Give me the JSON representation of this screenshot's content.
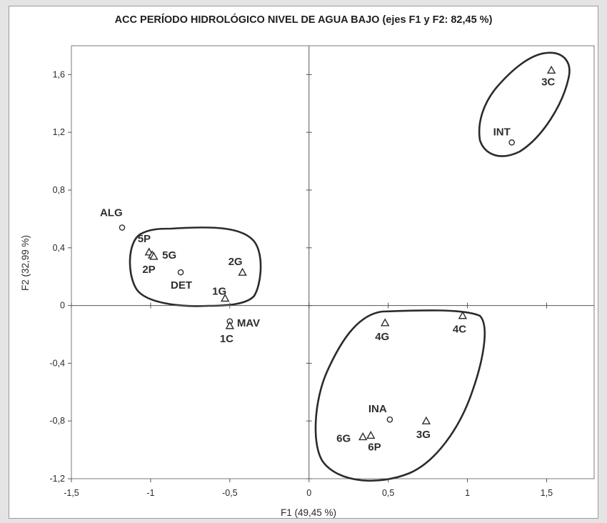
{
  "chart_data": {
    "type": "scatter",
    "title": "ACC PERÍODO HIDROLÓGICO NIVEL DE AGUA BAJO (ejes F1 y F2: 82,45 %)",
    "xlabel": "F1 (49,45 %)",
    "ylabel": "F2 (32,99 %)",
    "xlim": [
      -1.5,
      1.8
    ],
    "ylim": [
      -1.2,
      1.8
    ],
    "x_ticks": [
      "-1,5",
      "-1",
      "-0,5",
      "0",
      "0,5",
      "1",
      "1,5"
    ],
    "x_tick_values": [
      -1.5,
      -1,
      -0.5,
      0,
      0.5,
      1,
      1.5
    ],
    "y_ticks": [
      "-1,2",
      "-0,8",
      "-0,4",
      "0",
      "0,4",
      "0,8",
      "1,2",
      "1,6"
    ],
    "y_tick_values": [
      -1.2,
      -0.8,
      -0.4,
      0,
      0.4,
      0.8,
      1.2,
      1.6
    ],
    "grid": false,
    "zero_lines": true,
    "series": [
      {
        "marker": "circle",
        "points": [
          {
            "label": "ALG",
            "x": -1.18,
            "y": 0.54
          },
          {
            "label": "DET",
            "x": -0.81,
            "y": 0.23
          },
          {
            "label": "MAV",
            "x": -0.5,
            "y": -0.11
          },
          {
            "label": "INT",
            "x": 1.28,
            "y": 1.13
          },
          {
            "label": "INA",
            "x": 0.51,
            "y": -0.79
          }
        ]
      },
      {
        "marker": "triangle",
        "points": [
          {
            "label": "5P",
            "x": -1.01,
            "y": 0.37
          },
          {
            "label": "5G",
            "x": -0.99,
            "y": 0.35
          },
          {
            "label": "2P",
            "x": -0.98,
            "y": 0.34
          },
          {
            "label": "2G",
            "x": -0.42,
            "y": 0.23
          },
          {
            "label": "1G",
            "x": -0.53,
            "y": 0.05
          },
          {
            "label": "1C",
            "x": -0.5,
            "y": -0.14
          },
          {
            "label": "3C",
            "x": 1.53,
            "y": 1.63
          },
          {
            "label": "4G",
            "x": 0.48,
            "y": -0.12
          },
          {
            "label": "4C",
            "x": 0.97,
            "y": -0.07
          },
          {
            "label": "3G",
            "x": 0.74,
            "y": -0.8
          },
          {
            "label": "6G",
            "x": 0.34,
            "y": -0.91
          },
          {
            "label": "6P",
            "x": 0.39,
            "y": -0.9
          }
        ]
      }
    ],
    "colors": {
      "marker": "#2e2e2e",
      "axis": "#555555",
      "frame": "#9a9a9a"
    }
  }
}
